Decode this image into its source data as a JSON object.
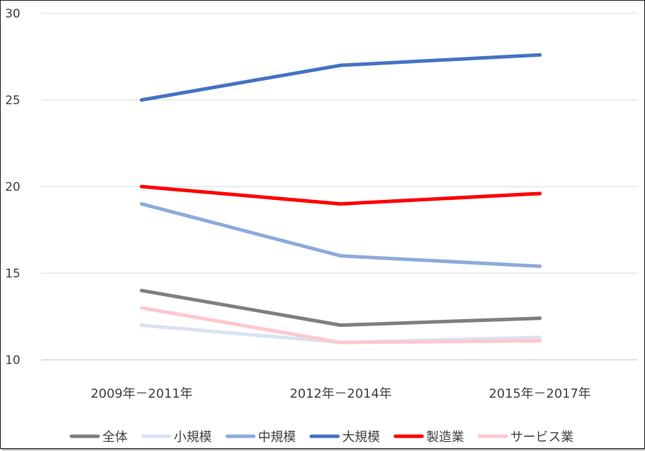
{
  "chart_data": {
    "type": "line",
    "title": "",
    "xlabel": "",
    "ylabel": "",
    "categories": [
      "2009年－2011年",
      "2012年－2014年",
      "2015年－2017年"
    ],
    "ylim": [
      10,
      30
    ],
    "yticks": [
      10,
      15,
      20,
      25,
      30
    ],
    "grid": true,
    "legend_position": "bottom",
    "series": [
      {
        "name": "全体",
        "color": "#7f7f7f",
        "values": [
          14.0,
          12.0,
          12.4
        ]
      },
      {
        "name": "小規模",
        "color": "#d9e2f3",
        "values": [
          12.0,
          11.0,
          11.3
        ]
      },
      {
        "name": "中規模",
        "color": "#8eaadb",
        "values": [
          19.0,
          16.0,
          15.4
        ]
      },
      {
        "name": "大規模",
        "color": "#4472c4",
        "values": [
          25.0,
          27.0,
          27.6
        ]
      },
      {
        "name": "製造業",
        "color": "#ff0000",
        "values": [
          20.0,
          19.0,
          19.6
        ]
      },
      {
        "name": "サービス業",
        "color": "#ffc7ce",
        "values": [
          13.0,
          11.0,
          11.1
        ]
      }
    ]
  }
}
